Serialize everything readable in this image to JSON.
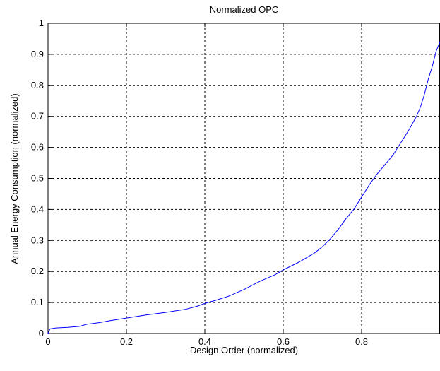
{
  "chart_data": {
    "type": "line",
    "title": "Normalized OPC",
    "xlabel": "Design Order (normalized)",
    "ylabel": "Annual Energy Consumption (normalized)",
    "xlim": [
      0,
      1
    ],
    "ylim": [
      0,
      1
    ],
    "x_ticks": [
      "0",
      "0.2",
      "0.4",
      "0.6",
      "0.8"
    ],
    "x_tick_values": [
      0,
      0.2,
      0.4,
      0.6,
      0.8
    ],
    "y_ticks": [
      "0",
      "0.1",
      "0.2",
      "0.3",
      "0.4",
      "0.5",
      "0.6",
      "0.7",
      "0.8",
      "0.9",
      "1"
    ],
    "y_tick_values": [
      0,
      0.1,
      0.2,
      0.3,
      0.4,
      0.5,
      0.6,
      0.7,
      0.8,
      0.9,
      1
    ],
    "grid": true,
    "line_color": "#0000ff",
    "series": [
      {
        "x": [
          0,
          0.005,
          0.02,
          0.05,
          0.08,
          0.1,
          0.13,
          0.16,
          0.2,
          0.25,
          0.3,
          0.35,
          0.38,
          0.4,
          0.43,
          0.46,
          0.5,
          0.54,
          0.58,
          0.6,
          0.64,
          0.68,
          0.7,
          0.72,
          0.74,
          0.76,
          0.78,
          0.8,
          0.82,
          0.84,
          0.86,
          0.88,
          0.9,
          0.92,
          0.94,
          0.95,
          0.96,
          0.97,
          0.98,
          0.99,
          1.0
        ],
        "y": [
          0,
          0.015,
          0.018,
          0.02,
          0.023,
          0.03,
          0.035,
          0.042,
          0.05,
          0.06,
          0.068,
          0.078,
          0.088,
          0.097,
          0.108,
          0.12,
          0.142,
          0.168,
          0.19,
          0.205,
          0.23,
          0.26,
          0.28,
          0.305,
          0.335,
          0.37,
          0.4,
          0.44,
          0.48,
          0.515,
          0.545,
          0.575,
          0.615,
          0.655,
          0.7,
          0.73,
          0.77,
          0.82,
          0.86,
          0.91,
          0.94
        ]
      }
    ]
  }
}
